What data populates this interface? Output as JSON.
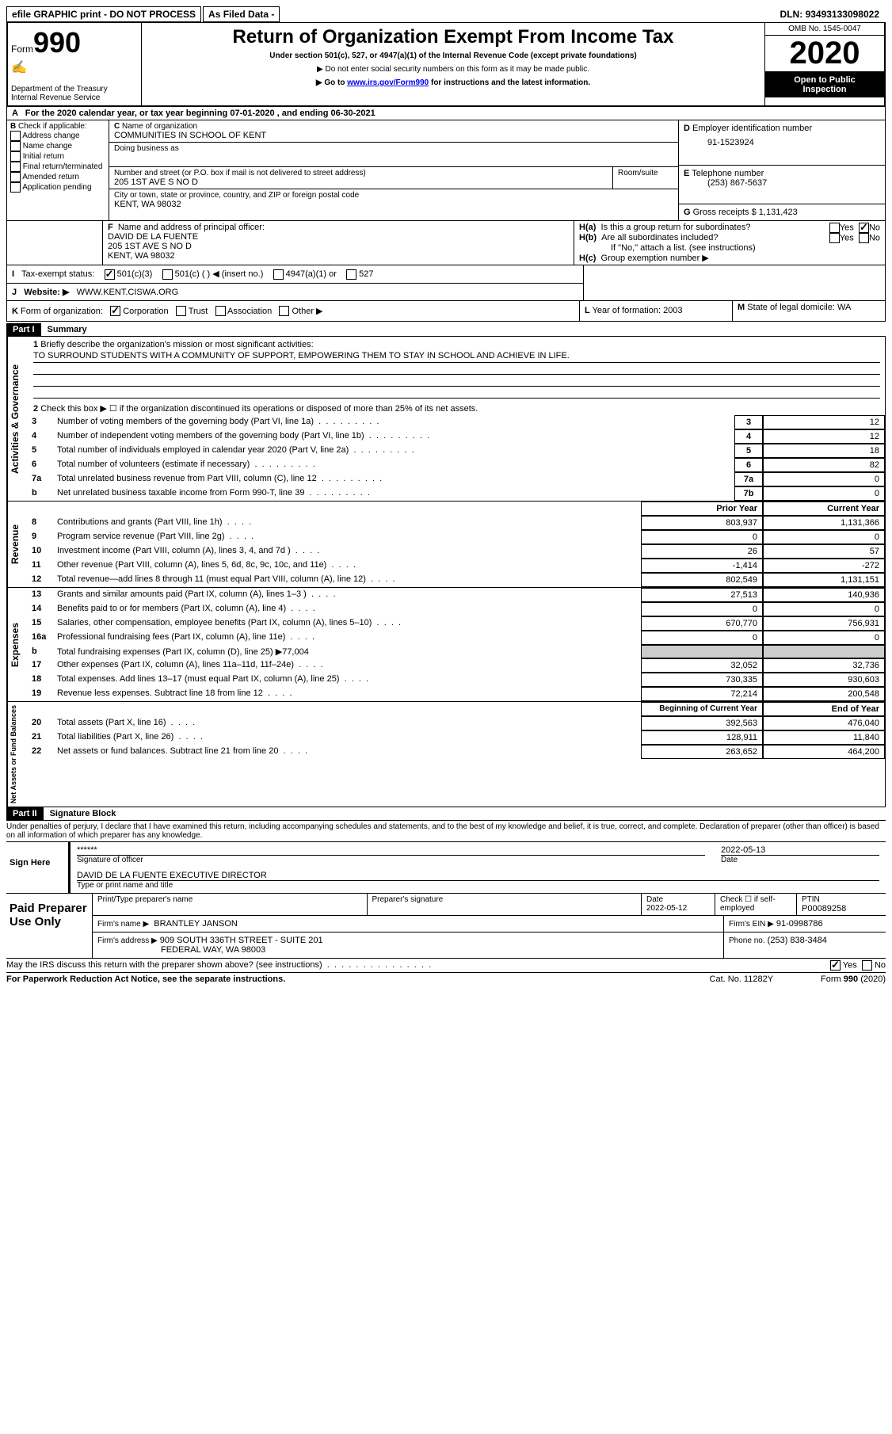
{
  "topbar": {
    "efile": "efile GRAPHIC print - DO NOT PROCESS",
    "asfiled": "As Filed Data -",
    "dln_label": "DLN:",
    "dln": "93493133098022"
  },
  "header": {
    "form_label": "Form",
    "form_number": "990",
    "dept": "Department of the Treasury\nInternal Revenue Service",
    "title": "Return of Organization Exempt From Income Tax",
    "subtitle": "Under section 501(c), 527, or 4947(a)(1) of the Internal Revenue Code (except private foundations)",
    "note1": "Do not enter social security numbers on this form as it may be made public.",
    "note2_pre": "Go to ",
    "note2_link": "www.irs.gov/Form990",
    "note2_post": " for instructions and the latest information.",
    "omb": "OMB No. 1545-0047",
    "year": "2020",
    "inspection": "Open to Public Inspection"
  },
  "lineA": {
    "text_pre": "For the 2020 calendar year, or tax year beginning ",
    "begin": "07-01-2020",
    "mid": " , and ending ",
    "end": "06-30-2021"
  },
  "boxB": {
    "label": "B",
    "text": "Check if applicable:",
    "items": [
      "Address change",
      "Name change",
      "Initial return",
      "Final return/terminated",
      "Amended return",
      "Application pending"
    ]
  },
  "boxC": {
    "name_label": "C",
    "name_text": "Name of organization",
    "name": "COMMUNITIES IN SCHOOL OF KENT",
    "dba_label": "Doing business as",
    "street_label": "Number and street (or P.O. box if mail is not delivered to street address)",
    "room_label": "Room/suite",
    "street": "205 1ST AVE S NO D",
    "city_label": "City or town, state or province, country, and ZIP or foreign postal code",
    "city": "KENT, WA  98032"
  },
  "boxD": {
    "label": "D",
    "text": "Employer identification number",
    "value": "91-1523924"
  },
  "boxE": {
    "label": "E",
    "text": "Telephone number",
    "value": "(253) 867-5637"
  },
  "boxG": {
    "label": "G",
    "text": "Gross receipts $",
    "value": "1,131,423"
  },
  "boxF": {
    "label": "F",
    "text": "Name and address of principal officer:",
    "name": "DAVID DE LA FUENTE",
    "street": "205 1ST AVE S NO D",
    "city": "KENT, WA  98032"
  },
  "boxH": {
    "ha_label": "H(a)",
    "ha_text": "Is this a group return for subordinates?",
    "hb_label": "H(b)",
    "hb_text": "Are all subordinates included?",
    "hb_note": "If \"No,\" attach a list. (see instructions)",
    "hc_label": "H(c)",
    "hc_text": "Group exemption number ▶",
    "yes": "Yes",
    "no": "No"
  },
  "lineI": {
    "label": "I",
    "text": "Tax-exempt status:",
    "opts": [
      "501(c)(3)",
      "501(c) (  ) ◀ (insert no.)",
      "4947(a)(1) or",
      "527"
    ]
  },
  "lineJ": {
    "label": "J",
    "text": "Website: ▶",
    "value": "WWW.KENT.CISWA.ORG"
  },
  "lineK": {
    "label": "K",
    "text": "Form of organization:",
    "opts": [
      "Corporation",
      "Trust",
      "Association",
      "Other ▶"
    ]
  },
  "lineL": {
    "label": "L",
    "text": "Year of formation:",
    "value": "2003"
  },
  "lineM": {
    "label": "M",
    "text": "State of legal domicile:",
    "value": "WA"
  },
  "partI": {
    "header": "Part I",
    "title": "Summary",
    "line1_label": "1",
    "line1_text": "Briefly describe the organization's mission or most significant activities:",
    "line1_value": "TO SURROUND STUDENTS WITH A COMMUNITY OF SUPPORT, EMPOWERING THEM TO STAY IN SCHOOL AND ACHIEVE IN LIFE.",
    "line2_label": "2",
    "line2_text": "Check this box ▶ ☐ if the organization discontinued its operations or disposed of more than 25% of its net assets.",
    "governance_label": "Activities & Governance",
    "revenue_label": "Revenue",
    "expenses_label": "Expenses",
    "netassets_label": "Net Assets or Fund Balances",
    "gov_lines": [
      {
        "num": "3",
        "text": "Number of voting members of the governing body (Part VI, line 1a)",
        "box": "3",
        "val": "12"
      },
      {
        "num": "4",
        "text": "Number of independent voting members of the governing body (Part VI, line 1b)",
        "box": "4",
        "val": "12"
      },
      {
        "num": "5",
        "text": "Total number of individuals employed in calendar year 2020 (Part V, line 2a)",
        "box": "5",
        "val": "18"
      },
      {
        "num": "6",
        "text": "Total number of volunteers (estimate if necessary)",
        "box": "6",
        "val": "82"
      },
      {
        "num": "7a",
        "text": "Total unrelated business revenue from Part VIII, column (C), line 12",
        "box": "7a",
        "val": "0"
      },
      {
        "num": "b",
        "text": "Net unrelated business taxable income from Form 990-T, line 39",
        "box": "7b",
        "val": "0"
      }
    ],
    "col_prior": "Prior Year",
    "col_current": "Current Year",
    "rev_lines": [
      {
        "num": "8",
        "text": "Contributions and grants (Part VIII, line 1h)",
        "prior": "803,937",
        "curr": "1,131,366"
      },
      {
        "num": "9",
        "text": "Program service revenue (Part VIII, line 2g)",
        "prior": "0",
        "curr": "0"
      },
      {
        "num": "10",
        "text": "Investment income (Part VIII, column (A), lines 3, 4, and 7d )",
        "prior": "26",
        "curr": "57"
      },
      {
        "num": "11",
        "text": "Other revenue (Part VIII, column (A), lines 5, 6d, 8c, 9c, 10c, and 11e)",
        "prior": "-1,414",
        "curr": "-272"
      },
      {
        "num": "12",
        "text": "Total revenue—add lines 8 through 11 (must equal Part VIII, column (A), line 12)",
        "prior": "802,549",
        "curr": "1,131,151"
      }
    ],
    "exp_lines": [
      {
        "num": "13",
        "text": "Grants and similar amounts paid (Part IX, column (A), lines 1–3 )",
        "prior": "27,513",
        "curr": "140,936"
      },
      {
        "num": "14",
        "text": "Benefits paid to or for members (Part IX, column (A), line 4)",
        "prior": "0",
        "curr": "0"
      },
      {
        "num": "15",
        "text": "Salaries, other compensation, employee benefits (Part IX, column (A), lines 5–10)",
        "prior": "670,770",
        "curr": "756,931"
      },
      {
        "num": "16a",
        "text": "Professional fundraising fees (Part IX, column (A), line 11e)",
        "prior": "0",
        "curr": "0"
      },
      {
        "num": "b",
        "text": "Total fundraising expenses (Part IX, column (D), line 25) ▶77,004",
        "prior": "",
        "curr": "",
        "gray": true
      },
      {
        "num": "17",
        "text": "Other expenses (Part IX, column (A), lines 11a–11d, 11f–24e)",
        "prior": "32,052",
        "curr": "32,736"
      },
      {
        "num": "18",
        "text": "Total expenses. Add lines 13–17 (must equal Part IX, column (A), line 25)",
        "prior": "730,335",
        "curr": "930,603"
      },
      {
        "num": "19",
        "text": "Revenue less expenses. Subtract line 18 from line 12",
        "prior": "72,214",
        "curr": "200,548"
      }
    ],
    "col_begin": "Beginning of Current Year",
    "col_end": "End of Year",
    "net_lines": [
      {
        "num": "20",
        "text": "Total assets (Part X, line 16)",
        "prior": "392,563",
        "curr": "476,040"
      },
      {
        "num": "21",
        "text": "Total liabilities (Part X, line 26)",
        "prior": "128,911",
        "curr": "11,840"
      },
      {
        "num": "22",
        "text": "Net assets or fund balances. Subtract line 21 from line 20",
        "prior": "263,652",
        "curr": "464,200"
      }
    ]
  },
  "partII": {
    "header": "Part II",
    "title": "Signature Block",
    "declaration": "Under penalties of perjury, I declare that I have examined this return, including accompanying schedules and statements, and to the best of my knowledge and belief, it is true, correct, and complete. Declaration of preparer (other than officer) is based on all information of which preparer has any knowledge.",
    "sign_here": "Sign Here",
    "sig_stars": "******",
    "sig_date": "2022-05-13",
    "sig_officer_label": "Signature of officer",
    "sig_date_label": "Date",
    "officer_name": "DAVID DE LA FUENTE  EXECUTIVE DIRECTOR",
    "officer_title_label": "Type or print name and title",
    "paid_label": "Paid Preparer Use Only",
    "prep_name_label": "Print/Type preparer's name",
    "prep_sig_label": "Preparer's signature",
    "prep_date_label": "Date",
    "prep_date": "2022-05-12",
    "prep_check_label": "Check ☐ if self-employed",
    "ptin_label": "PTIN",
    "ptin": "P00089258",
    "firm_name_label": "Firm's name    ▶",
    "firm_name": "BRANTLEY JANSON",
    "firm_ein_label": "Firm's EIN ▶",
    "firm_ein": "91-0998786",
    "firm_addr_label": "Firm's address ▶",
    "firm_addr1": "909 SOUTH 336TH STREET - SUITE 201",
    "firm_addr2": "FEDERAL WAY, WA  98003",
    "phone_label": "Phone no.",
    "phone": "(253) 838-3484",
    "discuss": "May the IRS discuss this return with the preparer shown above? (see instructions)",
    "yes": "Yes",
    "no": "No"
  },
  "footer": {
    "paperwork": "For Paperwork Reduction Act Notice, see the separate instructions.",
    "cat": "Cat. No. 11282Y",
    "form": "Form 990 (2020)"
  }
}
